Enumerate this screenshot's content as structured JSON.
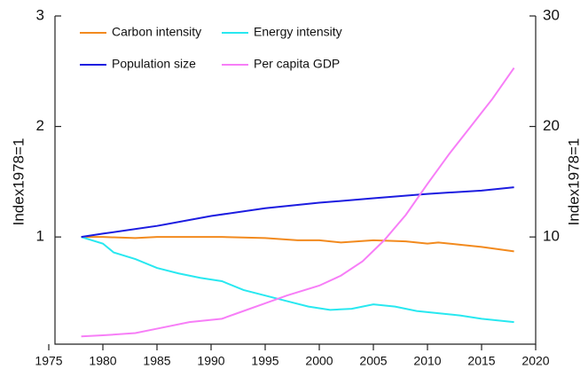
{
  "chart_data": {
    "type": "line",
    "y_label": "Index1978=1",
    "y2_label": "Index1978=1",
    "xlim": [
      1975,
      2020
    ],
    "xticks": [
      1975,
      1980,
      1985,
      1990,
      1995,
      2000,
      2005,
      2010,
      2015,
      2020
    ],
    "ylim": [
      0.03,
      3
    ],
    "yticks": [
      1,
      2,
      3
    ],
    "y2lim": [
      0.3,
      30
    ],
    "y2ticks": [
      10,
      20,
      30
    ],
    "series": [
      {
        "name": "Carbon intensity",
        "color": "#f28a1e",
        "x": [
          1978,
          1980,
          1983,
          1985,
          1988,
          1991,
          1995,
          1998,
          2000,
          2002,
          2005,
          2008,
          2010,
          2011,
          2013,
          2015,
          2018
        ],
        "values": [
          1.0,
          1.0,
          0.99,
          1.0,
          1.0,
          1.0,
          0.99,
          0.97,
          0.97,
          0.95,
          0.97,
          0.96,
          0.94,
          0.95,
          0.93,
          0.91,
          0.87
        ]
      },
      {
        "name": "Energy intensity",
        "color": "#28e8f0",
        "x": [
          1978,
          1980,
          1981,
          1983,
          1985,
          1987,
          1989,
          1991,
          1993,
          1995,
          1997,
          1999,
          2001,
          2003,
          2005,
          2007,
          2009,
          2011,
          2013,
          2015,
          2018
        ],
        "values": [
          1.0,
          0.94,
          0.86,
          0.8,
          0.72,
          0.67,
          0.63,
          0.6,
          0.52,
          0.47,
          0.42,
          0.37,
          0.34,
          0.35,
          0.39,
          0.37,
          0.33,
          0.31,
          0.29,
          0.26,
          0.23
        ]
      },
      {
        "name": "Population size",
        "color": "#1c1ce0",
        "x": [
          1978,
          1980,
          1985,
          1990,
          1995,
          2000,
          2005,
          2010,
          2015,
          2018
        ],
        "values": [
          1.0,
          1.03,
          1.1,
          1.19,
          1.26,
          1.31,
          1.35,
          1.39,
          1.42,
          1.45
        ]
      },
      {
        "name": "Per capita GDP",
        "color": "#f77ef7",
        "axis": "y2",
        "x": [
          1978,
          1980,
          1983,
          1985,
          1988,
          1990,
          1991,
          1993,
          1995,
          1997,
          2000,
          2002,
          2004,
          2006,
          2008,
          2010,
          2012,
          2014,
          2016,
          2018
        ],
        "values": [
          1.0,
          1.1,
          1.3,
          1.7,
          2.3,
          2.5,
          2.6,
          3.3,
          4.0,
          4.7,
          5.6,
          6.5,
          7.8,
          9.7,
          12.0,
          14.8,
          17.5,
          20.0,
          22.5,
          25.3
        ]
      }
    ]
  }
}
